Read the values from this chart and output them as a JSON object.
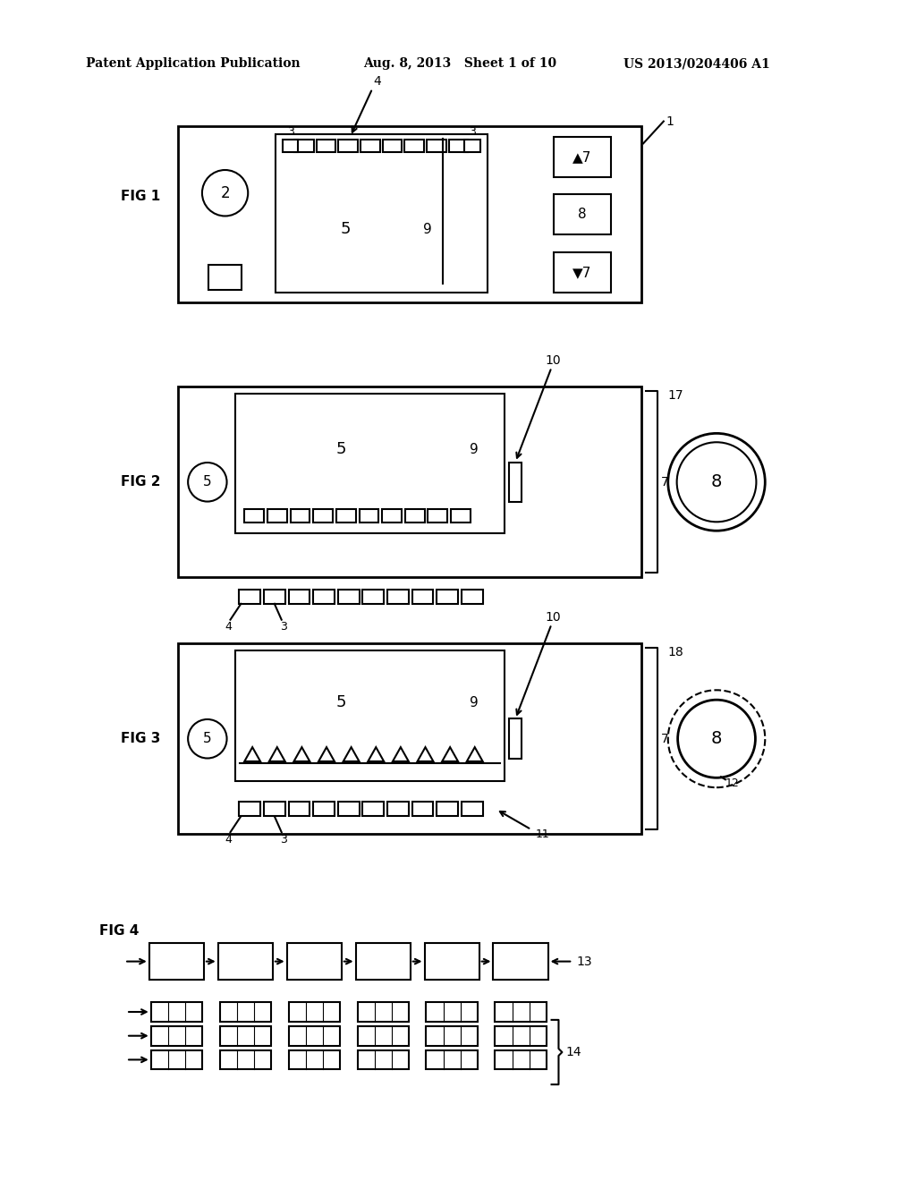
{
  "bg_color": "#ffffff",
  "line_color": "#000000",
  "header_left": "Patent Application Publication",
  "header_mid": "Aug. 8, 2013   Sheet 1 of 10",
  "header_right": "US 2013/0204406 A1",
  "fig1_label": "FIG 1",
  "fig2_label": "FIG 2",
  "fig3_label": "FIG 3",
  "fig4_label": "FIG 4"
}
